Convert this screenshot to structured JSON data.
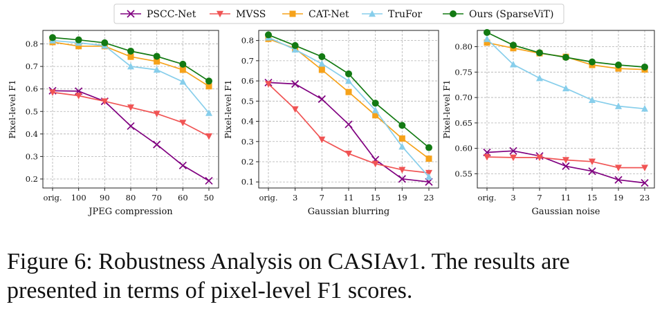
{
  "legend": [
    {
      "name": "PSCC-Net",
      "color": "#800080",
      "marker": "x"
    },
    {
      "name": "MVSS",
      "color": "#f05454",
      "marker": "v"
    },
    {
      "name": "CAT-Net",
      "color": "#f6a21a",
      "marker": "s"
    },
    {
      "name": "TruFor",
      "color": "#87ceeb",
      "marker": "^"
    },
    {
      "name": "Ours (SparseViT)",
      "color": "#137a13",
      "marker": "o"
    }
  ],
  "chart_data": [
    {
      "type": "line",
      "title": "",
      "xlabel": "JPEG compression",
      "ylabel": "Pixel-level F1",
      "categories": [
        "orig.",
        "100",
        "90",
        "80",
        "70",
        "60",
        "50"
      ],
      "ylim": [
        0.16,
        0.86
      ],
      "yticks": [
        "0.2",
        "0.3",
        "0.4",
        "0.5",
        "0.6",
        "0.7",
        "0.8"
      ],
      "grid": true,
      "series": [
        {
          "name": "PSCC-Net",
          "values": [
            0.592,
            0.59,
            0.545,
            0.435,
            0.353,
            0.26,
            0.192
          ]
        },
        {
          "name": "MVSS",
          "values": [
            0.585,
            0.57,
            0.545,
            0.518,
            0.49,
            0.45,
            0.39
          ]
        },
        {
          "name": "CAT-Net",
          "values": [
            0.808,
            0.79,
            0.79,
            0.743,
            0.722,
            0.685,
            0.612
          ]
        },
        {
          "name": "TruFor",
          "values": [
            0.815,
            0.805,
            0.792,
            0.7,
            0.685,
            0.632,
            0.493
          ]
        },
        {
          "name": "Ours (SparseViT)",
          "values": [
            0.828,
            0.818,
            0.805,
            0.768,
            0.745,
            0.71,
            0.635
          ]
        }
      ]
    },
    {
      "type": "line",
      "title": "",
      "xlabel": "Gaussian blurring",
      "ylabel": "Pixel-level F1",
      "categories": [
        "orig.",
        "3",
        "7",
        "11",
        "15",
        "19",
        "23"
      ],
      "ylim": [
        0.07,
        0.85
      ],
      "yticks": [
        "0.1",
        "0.2",
        "0.3",
        "0.4",
        "0.5",
        "0.6",
        "0.7",
        "0.8"
      ],
      "grid": true,
      "series": [
        {
          "name": "PSCC-Net",
          "values": [
            0.592,
            0.585,
            0.51,
            0.385,
            0.21,
            0.115,
            0.1
          ]
        },
        {
          "name": "MVSS",
          "values": [
            0.585,
            0.46,
            0.31,
            0.24,
            0.19,
            0.16,
            0.145
          ]
        },
        {
          "name": "CAT-Net",
          "values": [
            0.808,
            0.76,
            0.655,
            0.545,
            0.43,
            0.315,
            0.215
          ]
        },
        {
          "name": "TruFor",
          "values": [
            0.815,
            0.755,
            0.685,
            0.6,
            0.455,
            0.275,
            0.125
          ]
        },
        {
          "name": "Ours (SparseViT)",
          "values": [
            0.828,
            0.775,
            0.72,
            0.635,
            0.49,
            0.38,
            0.27
          ]
        }
      ]
    },
    {
      "type": "line",
      "title": "",
      "xlabel": "Gaussian noise",
      "ylabel": "Pixel-level F1",
      "categories": [
        "orig.",
        "3",
        "7",
        "11",
        "15",
        "19",
        "23"
      ],
      "ylim": [
        0.522,
        0.832
      ],
      "yticks": [
        "0.55",
        "0.60",
        "0.65",
        "0.70",
        "0.75",
        "0.80"
      ],
      "grid": true,
      "series": [
        {
          "name": "PSCC-Net",
          "values": [
            0.592,
            0.595,
            0.585,
            0.565,
            0.555,
            0.538,
            0.532
          ]
        },
        {
          "name": "MVSS",
          "values": [
            0.583,
            0.582,
            0.582,
            0.577,
            0.574,
            0.562,
            0.562
          ]
        },
        {
          "name": "CAT-Net",
          "values": [
            0.808,
            0.797,
            0.787,
            0.78,
            0.764,
            0.757,
            0.755
          ]
        },
        {
          "name": "TruFor",
          "values": [
            0.815,
            0.765,
            0.738,
            0.718,
            0.695,
            0.683,
            0.678
          ]
        },
        {
          "name": "Ours (SparseViT)",
          "values": [
            0.828,
            0.803,
            0.788,
            0.779,
            0.77,
            0.764,
            0.76
          ]
        }
      ]
    }
  ],
  "caption": {
    "line1": "Figure 6: Robustness Analysis on CASIAv1. The results are",
    "line2": "presented in terms of pixel-level F1 scores."
  }
}
